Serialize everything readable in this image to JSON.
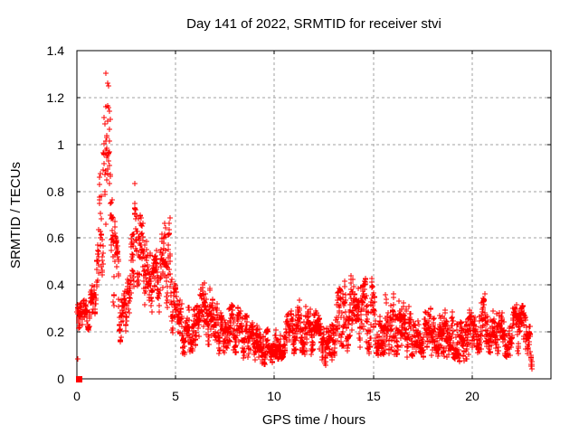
{
  "chart_data": {
    "type": "scatter",
    "title": "Day 141 of 2022, SRMTID for receiver stvi",
    "xlabel": "GPS time / hours",
    "ylabel": "SRMTID / TECUs",
    "xlim": [
      0,
      24
    ],
    "ylim": [
      0,
      1.4
    ],
    "xticks": [
      0,
      5,
      10,
      15,
      20
    ],
    "xtick_labels": [
      "0",
      "5",
      "10",
      "15",
      "20"
    ],
    "yticks": [
      0,
      0.2,
      0.4,
      0.6,
      0.8,
      1,
      1.2,
      1.4
    ],
    "ytick_labels": [
      "0",
      "0.2",
      "0.4",
      "0.6",
      "0.8",
      "1",
      "1.2",
      "1.4"
    ],
    "grid": true,
    "legend_position": "none",
    "marker": "plus",
    "marker_size_px": 7,
    "colors": {
      "points": "#ff0000",
      "grid": "#a0a0a0",
      "axis": "#000000",
      "text": "#000000",
      "background": "#ffffff"
    },
    "sampling": {
      "start_hour": 0.02,
      "end_hour": 23.05,
      "interval_hours": 0.0083333,
      "seed": 141
    },
    "envelope": [
      [
        0.02,
        0.21,
        0.34
      ],
      [
        0.3,
        0.23,
        0.37
      ],
      [
        0.6,
        0.2,
        0.34
      ],
      [
        0.85,
        0.25,
        0.45
      ],
      [
        1.05,
        0.3,
        0.72
      ],
      [
        1.25,
        0.4,
        1.1
      ],
      [
        1.45,
        0.58,
        1.34
      ],
      [
        1.6,
        0.52,
        1.24
      ],
      [
        1.8,
        0.36,
        0.96
      ],
      [
        2.0,
        0.22,
        0.62
      ],
      [
        2.2,
        0.15,
        0.42
      ],
      [
        2.5,
        0.11,
        0.36
      ],
      [
        2.75,
        0.27,
        0.62
      ],
      [
        3.0,
        0.36,
        0.88
      ],
      [
        3.15,
        0.4,
        0.97
      ],
      [
        3.35,
        0.33,
        0.8
      ],
      [
        3.55,
        0.27,
        0.62
      ],
      [
        3.85,
        0.22,
        0.52
      ],
      [
        4.1,
        0.25,
        0.56
      ],
      [
        4.4,
        0.29,
        0.68
      ],
      [
        4.55,
        0.3,
        0.93
      ],
      [
        4.7,
        0.24,
        0.7
      ],
      [
        4.9,
        0.15,
        0.45
      ],
      [
        5.15,
        0.11,
        0.35
      ],
      [
        5.5,
        0.1,
        0.3
      ],
      [
        5.9,
        0.12,
        0.33
      ],
      [
        6.2,
        0.15,
        0.38
      ],
      [
        6.5,
        0.16,
        0.42
      ],
      [
        6.8,
        0.13,
        0.38
      ],
      [
        7.1,
        0.1,
        0.32
      ],
      [
        7.5,
        0.08,
        0.28
      ],
      [
        7.9,
        0.1,
        0.33
      ],
      [
        8.3,
        0.09,
        0.3
      ],
      [
        8.7,
        0.08,
        0.27
      ],
      [
        9.1,
        0.07,
        0.24
      ],
      [
        9.5,
        0.06,
        0.22
      ],
      [
        9.9,
        0.07,
        0.2
      ],
      [
        10.3,
        0.08,
        0.24
      ],
      [
        10.7,
        0.1,
        0.28
      ],
      [
        11.1,
        0.11,
        0.33
      ],
      [
        11.4,
        0.11,
        0.36
      ],
      [
        11.7,
        0.1,
        0.32
      ],
      [
        12.0,
        0.09,
        0.3
      ],
      [
        12.4,
        0.07,
        0.26
      ],
      [
        12.7,
        0.05,
        0.22
      ],
      [
        13.0,
        0.09,
        0.31
      ],
      [
        13.4,
        0.1,
        0.42
      ],
      [
        13.8,
        0.1,
        0.46
      ],
      [
        14.2,
        0.1,
        0.4
      ],
      [
        14.6,
        0.09,
        0.43
      ],
      [
        14.9,
        0.12,
        0.44
      ],
      [
        15.2,
        0.1,
        0.42
      ],
      [
        15.6,
        0.1,
        0.4
      ],
      [
        16.0,
        0.1,
        0.37
      ],
      [
        16.4,
        0.1,
        0.34
      ],
      [
        16.8,
        0.09,
        0.31
      ],
      [
        17.2,
        0.09,
        0.28
      ],
      [
        17.6,
        0.09,
        0.29
      ],
      [
        18.0,
        0.1,
        0.31
      ],
      [
        18.5,
        0.09,
        0.32
      ],
      [
        19.0,
        0.08,
        0.29
      ],
      [
        19.4,
        0.06,
        0.26
      ],
      [
        19.8,
        0.09,
        0.32
      ],
      [
        20.2,
        0.11,
        0.36
      ],
      [
        20.6,
        0.12,
        0.37
      ],
      [
        21.0,
        0.11,
        0.33
      ],
      [
        21.4,
        0.1,
        0.3
      ],
      [
        21.8,
        0.09,
        0.29
      ],
      [
        22.2,
        0.1,
        0.31
      ],
      [
        22.5,
        0.1,
        0.33
      ],
      [
        22.8,
        0.07,
        0.26
      ],
      [
        23.05,
        0.04,
        0.2
      ]
    ],
    "outliers": [
      [
        0.05,
        0.085
      ]
    ],
    "origin_cluster": {
      "x": 0.07,
      "y": 0.0
    }
  }
}
